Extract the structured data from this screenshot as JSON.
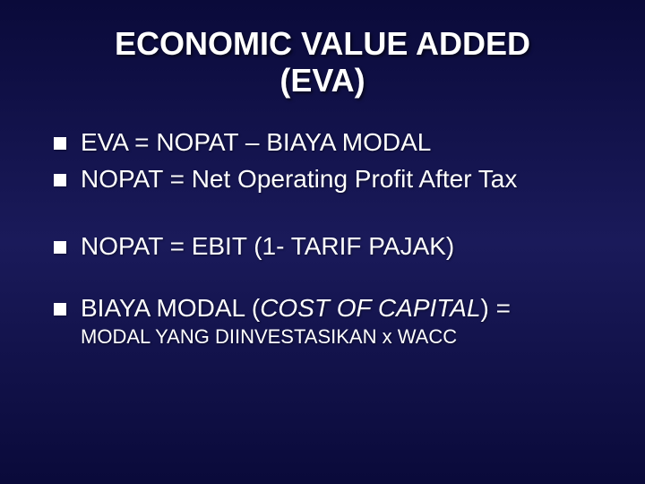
{
  "slide": {
    "background_gradient": [
      "#0a0a3a",
      "#1a1a5a",
      "#0a0a3a"
    ],
    "text_color": "#ffffff",
    "bullet_color": "#ffffff",
    "title": {
      "line1": "ECONOMIC VALUE ADDED",
      "line2": "(EVA)",
      "fontsize": 36,
      "weight": "bold"
    },
    "bullets": {
      "group1": [
        "EVA = NOPAT – BIAYA MODAL",
        "NOPAT = Net Operating Profit After Tax"
      ],
      "group2": [
        "NOPAT = EBIT (1- TARIF PAJAK)"
      ],
      "group3_main_prefix": "BIAYA MODAL (",
      "group3_main_italic": "COST OF CAPITAL",
      "group3_main_suffix": ") =",
      "group3_sub": "MODAL YANG DIINVESTASIKAN x WACC",
      "fontsize_main": 28,
      "fontsize_sub": 22
    }
  }
}
